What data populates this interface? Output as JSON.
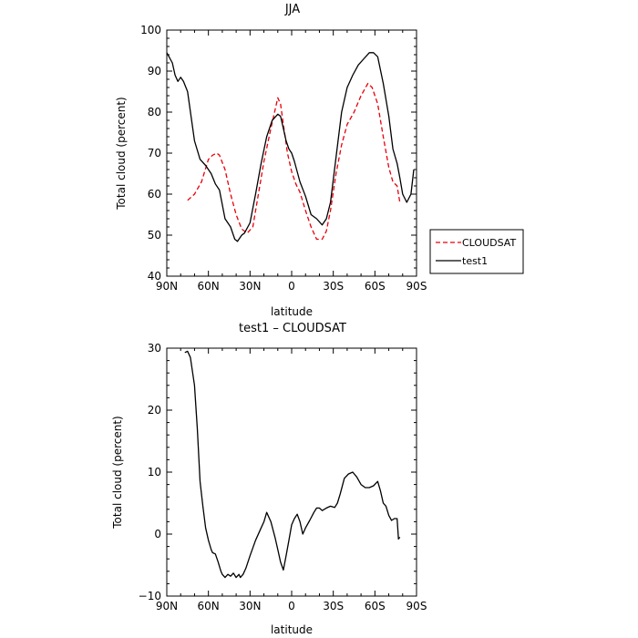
{
  "chart_data": [
    {
      "type": "line",
      "title": "JJA",
      "xlabel": "latitude",
      "ylabel": "Total cloud (percent)",
      "xlim": [
        90,
        -90
      ],
      "ylim": [
        40,
        100
      ],
      "xticks": [
        90,
        60,
        30,
        0,
        -30,
        -60,
        -90
      ],
      "xtick_labels": [
        "90N",
        "60N",
        "30N",
        "0",
        "30S",
        "60S",
        "90S"
      ],
      "yticks": [
        40,
        50,
        60,
        70,
        80,
        90,
        100
      ],
      "ytick_labels": [
        "40",
        "50",
        "60",
        "70",
        "80",
        "90",
        "100"
      ],
      "legend_position": "right",
      "series": [
        {
          "name": "CLOUDSAT",
          "color": "#e8000b",
          "style": "dashed",
          "x": [
            75,
            70,
            65,
            60,
            57,
            54,
            52,
            48,
            44,
            40,
            36,
            32,
            28,
            24,
            20,
            15,
            10,
            8,
            6,
            3,
            0,
            -3,
            -6,
            -10,
            -14,
            -18,
            -22,
            -25,
            -28,
            -32,
            -36,
            -40,
            -45,
            -50,
            -55,
            -58,
            -62,
            -66,
            -70,
            -73,
            -76,
            -78
          ],
          "y": [
            58.5,
            60,
            63,
            68.5,
            69.5,
            70,
            69.5,
            66,
            60,
            55,
            51.5,
            50.5,
            52,
            60,
            68,
            76,
            83.5,
            82,
            77,
            70,
            65.5,
            62.5,
            60.5,
            56,
            52,
            49,
            49,
            51,
            56,
            65,
            72,
            77,
            80,
            84,
            87,
            86,
            82,
            74,
            66.5,
            63,
            62,
            58
          ]
        },
        {
          "name": "test1",
          "color": "#000000",
          "style": "solid",
          "x": [
            90,
            86,
            84,
            82,
            80,
            78,
            75,
            70,
            66,
            62,
            58,
            55,
            52,
            48,
            44,
            41,
            39,
            36,
            34,
            30,
            26,
            22,
            18,
            14,
            10,
            8,
            6,
            4,
            2,
            0,
            -2,
            -6,
            -10,
            -14,
            -18,
            -22,
            -25,
            -28,
            -32,
            -36,
            -40,
            -44,
            -48,
            -52,
            -56,
            -59,
            -62,
            -66,
            -70,
            -73,
            -76,
            -78,
            -80,
            -83,
            -86,
            -88
          ],
          "y": [
            94.5,
            92,
            89,
            87.5,
            88.5,
            87.5,
            85,
            73,
            68.5,
            67,
            65,
            62.5,
            61,
            54,
            52,
            49,
            48.5,
            50,
            50.5,
            53,
            60,
            67.5,
            74,
            78,
            79.5,
            79,
            76,
            73,
            71,
            70,
            68,
            63,
            59.5,
            55,
            54,
            52.5,
            54,
            58,
            69,
            80,
            86,
            89,
            91.5,
            93,
            94.5,
            94.5,
            93.5,
            87,
            79,
            71,
            67.5,
            64,
            60,
            58,
            60,
            66
          ]
        }
      ]
    },
    {
      "type": "line",
      "title": "test1 – CLOUDSAT",
      "xlabel": "latitude",
      "ylabel": "Total cloud (percent)",
      "xlim": [
        90,
        -90
      ],
      "ylim": [
        -10,
        30
      ],
      "xticks": [
        90,
        60,
        30,
        0,
        -30,
        -60,
        -90
      ],
      "xtick_labels": [
        "90N",
        "60N",
        "30N",
        "0",
        "30S",
        "60S",
        "90S"
      ],
      "yticks": [
        -10,
        0,
        10,
        20,
        30
      ],
      "ytick_labels": [
        "−10",
        "0",
        "10",
        "20",
        "30"
      ],
      "series": [
        {
          "name": "",
          "color": "#000000",
          "style": "solid",
          "x": [
            77,
            75,
            73,
            70,
            68,
            66,
            64,
            62,
            60,
            58,
            57,
            55,
            53,
            51,
            50,
            48,
            46,
            44,
            42,
            40,
            38,
            37,
            35,
            33,
            30,
            26,
            22,
            20,
            18,
            15,
            12,
            10,
            8,
            6,
            4,
            2,
            0,
            -2,
            -4,
            -6,
            -8,
            -10,
            -13,
            -16,
            -18,
            -20,
            -22,
            -25,
            -28,
            -31,
            -33,
            -35,
            -38,
            -41,
            -44,
            -47,
            -50,
            -53,
            -56,
            -59,
            -62,
            -64,
            -66,
            -68,
            -70,
            -72,
            -74,
            -76,
            -77,
            -78
          ],
          "y": [
            29.3,
            29.5,
            28.5,
            24,
            17,
            8.5,
            4.5,
            1,
            -1,
            -2.5,
            -3,
            -3.2,
            -4.5,
            -6,
            -6.5,
            -7,
            -6.5,
            -6.8,
            -6.3,
            -7,
            -6.5,
            -7,
            -6.5,
            -5.5,
            -3.5,
            -1,
            1,
            2,
            3.5,
            2,
            -0.5,
            -2.5,
            -4.5,
            -5.8,
            -3.5,
            -1,
            1.5,
            2.5,
            3.2,
            2,
            0,
            1,
            2.2,
            3.5,
            4.2,
            4.2,
            3.8,
            4.2,
            4.5,
            4.3,
            5,
            6.5,
            9,
            9.7,
            10,
            9.2,
            8,
            7.5,
            7.5,
            7.8,
            8.5,
            7,
            5,
            4.5,
            3,
            2.2,
            2.5,
            2.5,
            -0.8,
            -0.5
          ]
        }
      ]
    }
  ],
  "legend": {
    "items": [
      {
        "label": "CLOUDSAT",
        "color": "#e8000b",
        "style": "dashed"
      },
      {
        "label": "test1",
        "color": "#000000",
        "style": "solid"
      }
    ]
  }
}
